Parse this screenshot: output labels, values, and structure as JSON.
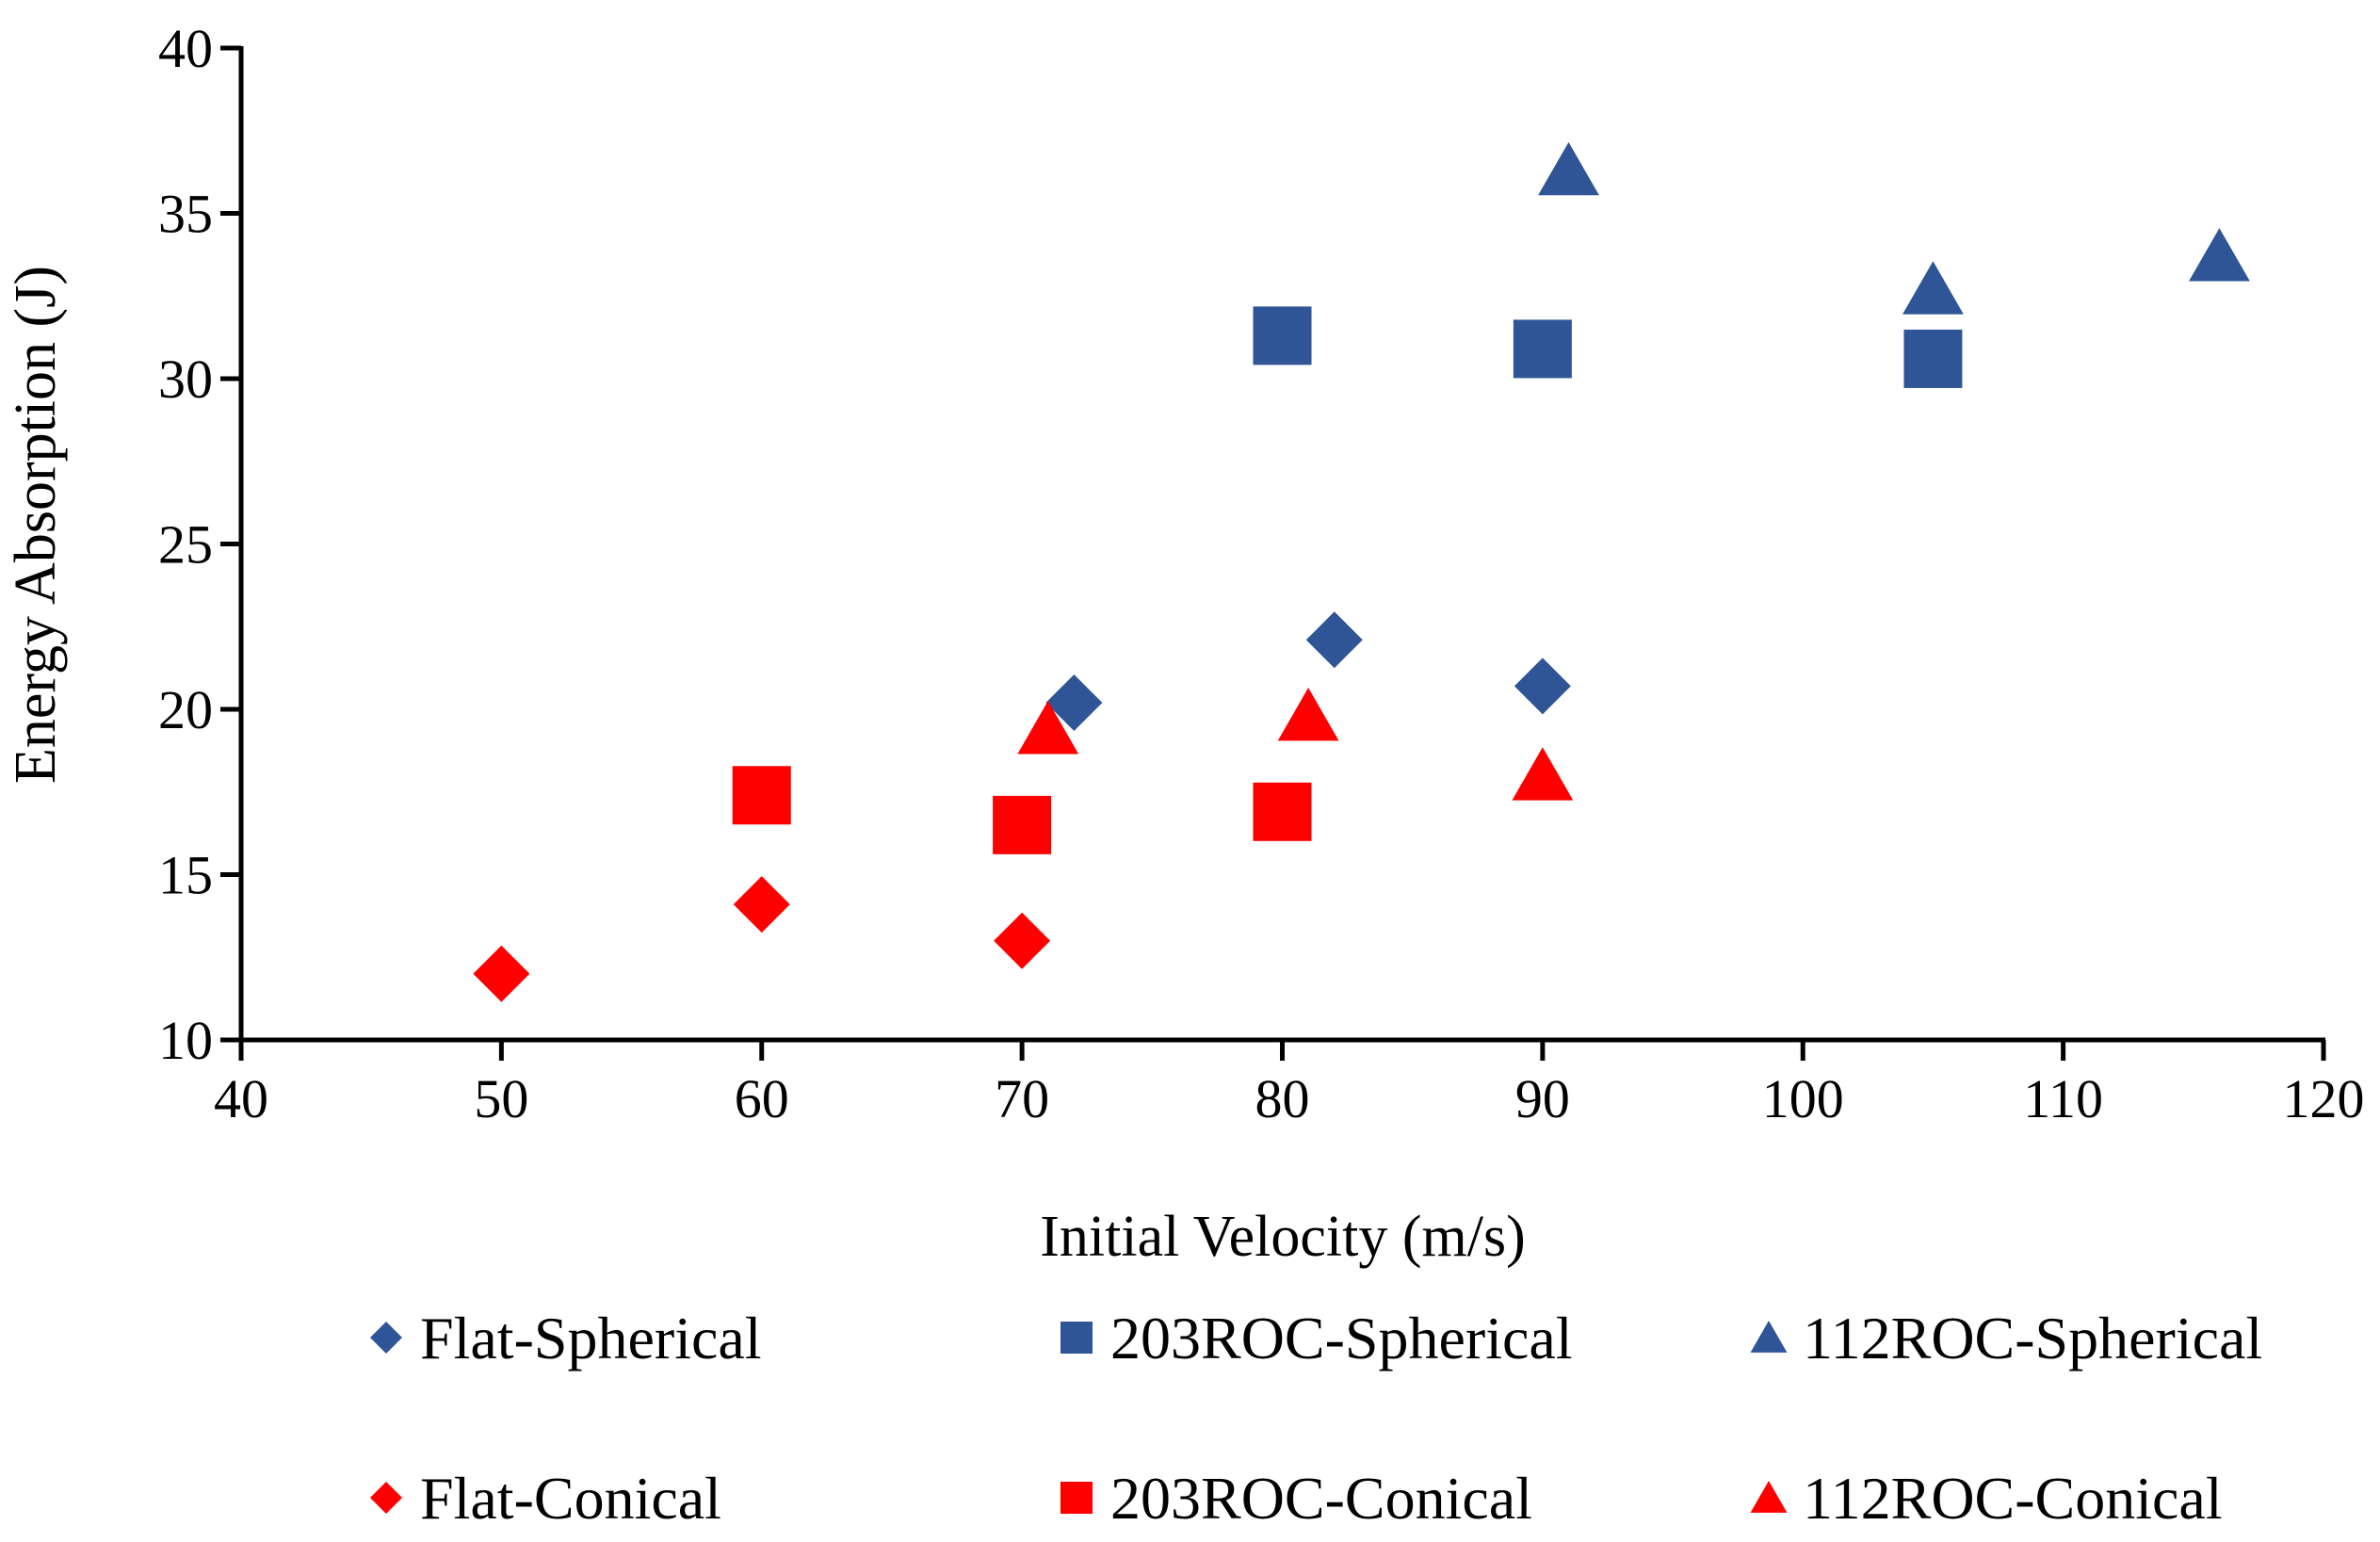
{
  "chart_data": {
    "type": "scatter",
    "xlabel": "Initial Velocity (m/s)",
    "ylabel": "Energy Absorption (J)",
    "xlim": [
      40,
      120
    ],
    "ylim": [
      10,
      40
    ],
    "xticks": [
      40,
      50,
      60,
      70,
      80,
      90,
      100,
      110,
      120
    ],
    "yticks": [
      10,
      15,
      20,
      25,
      30,
      35,
      40
    ],
    "grid": false,
    "legend_position": "bottom",
    "series": [
      {
        "name": "Flat-Spherical",
        "marker": "diamond",
        "color": "#2F5597",
        "points": [
          [
            72,
            20.2
          ],
          [
            82,
            22.1
          ],
          [
            90,
            20.7
          ]
        ]
      },
      {
        "name": "203ROC-Spherical",
        "marker": "square",
        "color": "#2F5597",
        "points": [
          [
            80,
            31.3
          ],
          [
            90,
            30.9
          ],
          [
            105,
            30.6
          ]
        ]
      },
      {
        "name": "112ROC-Spherical",
        "marker": "triangle",
        "color": "#2F5597",
        "points": [
          [
            91,
            36.3
          ],
          [
            105,
            32.7
          ],
          [
            116,
            33.7
          ]
        ]
      },
      {
        "name": "Flat-Conical",
        "marker": "diamond",
        "color": "#FF0000",
        "points": [
          [
            50,
            12.0
          ],
          [
            60,
            14.1
          ],
          [
            70,
            13.0
          ]
        ]
      },
      {
        "name": "203ROC-Conical",
        "marker": "square",
        "color": "#FF0000",
        "points": [
          [
            60,
            17.4
          ],
          [
            70,
            16.5
          ],
          [
            80,
            16.9
          ]
        ]
      },
      {
        "name": "112ROC-Conical",
        "marker": "triangle",
        "color": "#FF0000",
        "points": [
          [
            71,
            19.4
          ],
          [
            81,
            19.8
          ],
          [
            90,
            18.0
          ]
        ]
      }
    ]
  }
}
